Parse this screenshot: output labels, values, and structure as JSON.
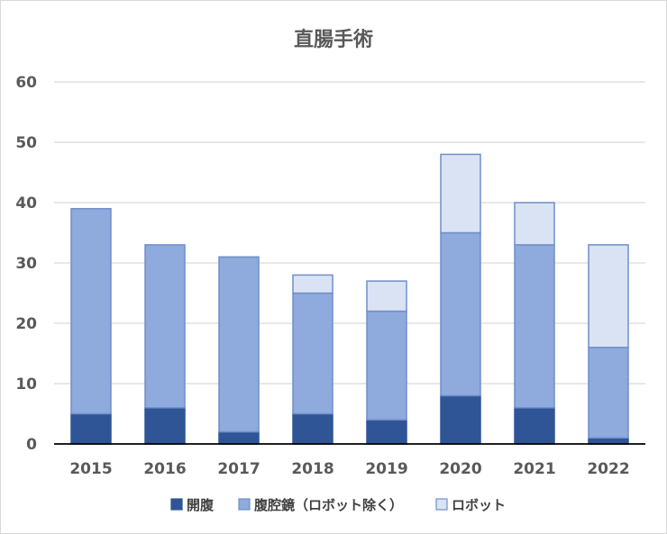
{
  "chart_data": {
    "type": "bar",
    "stacked": true,
    "title": "直腸手術",
    "categories": [
      "2015",
      "2016",
      "2017",
      "2018",
      "2019",
      "2020",
      "2021",
      "2022"
    ],
    "series": [
      {
        "name": "開腹",
        "values": [
          5,
          6,
          2,
          5,
          4,
          8,
          6,
          1
        ],
        "color": "#2f5597",
        "stroke": "#2f5597"
      },
      {
        "name": "腹腔鏡（ロボット除く）",
        "values": [
          34,
          27,
          29,
          20,
          18,
          27,
          27,
          15
        ],
        "color": "#8faadc",
        "stroke": "#6f8fc8"
      },
      {
        "name": "ロボット",
        "values": [
          0,
          0,
          0,
          3,
          5,
          13,
          7,
          17
        ],
        "color": "#dae3f3",
        "stroke": "#6f8fc8"
      }
    ],
    "ylim": [
      0,
      60
    ],
    "yticks": [
      "0",
      "10",
      "20",
      "30",
      "40",
      "50",
      "60"
    ],
    "grid": true,
    "legend_position": "bottom"
  }
}
